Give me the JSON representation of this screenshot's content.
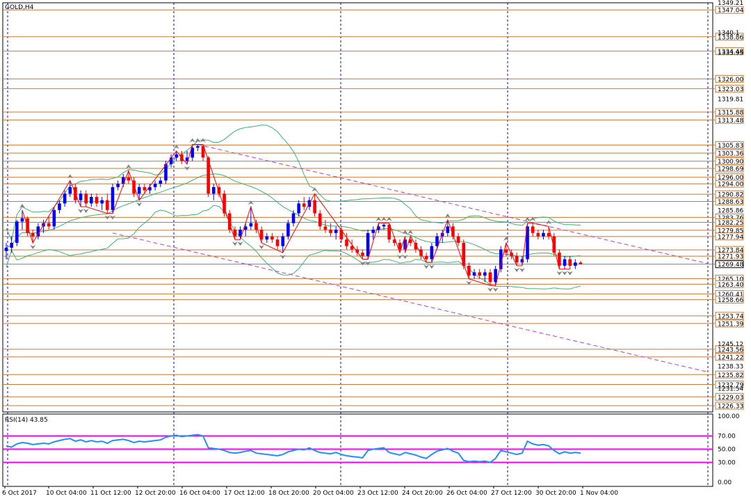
{
  "chart_data": {
    "type": "candlestick",
    "title": "GOLD,H4",
    "main_ylim": [
      1226.33,
      1349.21
    ],
    "price_axis_ticks": [
      "1349.21",
      "1340.1",
      "1333.95",
      "1319.81",
      "1285.86",
      "1245.12",
      "1238.33",
      "1231.54"
    ],
    "current_price": "1269.48",
    "horizontal_levels": [
      "1347.04",
      "1338.86",
      "1334.48",
      "1326.00",
      "1323.03",
      "1315.88",
      "1313.48",
      "1305.83",
      "1303.36",
      "1300.90",
      "1298.69",
      "1296.00",
      "1294.00",
      "1290.82",
      "1288.63",
      "1283.76",
      "1282.25",
      "1279.85",
      "1277.94",
      "1273.84",
      "1271.93",
      "1265.10",
      "1263.40",
      "1260.41",
      "1258.66",
      "1253.74",
      "1251.39",
      "1243.56",
      "1241.22",
      "1235.82",
      "1232.79",
      "1229.03",
      "1226.33"
    ],
    "x_tick_labels": [
      "6 Oct 2017",
      "10 Oct 04:00",
      "11 Oct 12:00",
      "12 Oct 20:00",
      "16 Oct 04:00",
      "17 Oct 12:00",
      "18 Oct 20:00",
      "20 Oct 04:00",
      "23 Oct 12:00",
      "24 Oct 20:00",
      "26 Oct 04:00",
      "27 Oct 12:00",
      "30 Oct 20:00",
      "1 Nov 04:00"
    ],
    "candles": [
      {
        "o": 1273.5,
        "h": 1276,
        "l": 1271,
        "c": 1274.5
      },
      {
        "o": 1274.5,
        "h": 1278,
        "l": 1273,
        "c": 1276
      },
      {
        "o": 1276,
        "h": 1283,
        "l": 1275,
        "c": 1282.5
      },
      {
        "o": 1282.5,
        "h": 1286,
        "l": 1280,
        "c": 1283.5
      },
      {
        "o": 1283.5,
        "h": 1284,
        "l": 1278,
        "c": 1279
      },
      {
        "o": 1279,
        "h": 1280,
        "l": 1276,
        "c": 1278
      },
      {
        "o": 1278,
        "h": 1282,
        "l": 1277,
        "c": 1281
      },
      {
        "o": 1281,
        "h": 1283,
        "l": 1279,
        "c": 1282
      },
      {
        "o": 1282,
        "h": 1284,
        "l": 1280,
        "c": 1281
      },
      {
        "o": 1281,
        "h": 1287,
        "l": 1280,
        "c": 1286
      },
      {
        "o": 1286,
        "h": 1289,
        "l": 1285,
        "c": 1288
      },
      {
        "o": 1288,
        "h": 1292,
        "l": 1287,
        "c": 1291
      },
      {
        "o": 1291,
        "h": 1295,
        "l": 1290,
        "c": 1293
      },
      {
        "o": 1293,
        "h": 1294,
        "l": 1288,
        "c": 1289
      },
      {
        "o": 1289,
        "h": 1292,
        "l": 1287,
        "c": 1291
      },
      {
        "o": 1291,
        "h": 1292,
        "l": 1287,
        "c": 1288
      },
      {
        "o": 1288,
        "h": 1291,
        "l": 1287,
        "c": 1290
      },
      {
        "o": 1290,
        "h": 1291,
        "l": 1287,
        "c": 1288
      },
      {
        "o": 1288,
        "h": 1290,
        "l": 1286,
        "c": 1289
      },
      {
        "o": 1289,
        "h": 1291,
        "l": 1285,
        "c": 1286
      },
      {
        "o": 1286,
        "h": 1294,
        "l": 1285,
        "c": 1293
      },
      {
        "o": 1293,
        "h": 1295,
        "l": 1292,
        "c": 1294
      },
      {
        "o": 1294,
        "h": 1297,
        "l": 1293,
        "c": 1296
      },
      {
        "o": 1296,
        "h": 1298,
        "l": 1294,
        "c": 1295
      },
      {
        "o": 1295,
        "h": 1296,
        "l": 1290,
        "c": 1291
      },
      {
        "o": 1291,
        "h": 1294,
        "l": 1289,
        "c": 1293
      },
      {
        "o": 1293,
        "h": 1294,
        "l": 1291,
        "c": 1292
      },
      {
        "o": 1292,
        "h": 1294,
        "l": 1291,
        "c": 1293
      },
      {
        "o": 1293,
        "h": 1295,
        "l": 1292,
        "c": 1294
      },
      {
        "o": 1294,
        "h": 1296,
        "l": 1293,
        "c": 1295
      },
      {
        "o": 1295,
        "h": 1301,
        "l": 1294,
        "c": 1300
      },
      {
        "o": 1300,
        "h": 1303,
        "l": 1299,
        "c": 1302
      },
      {
        "o": 1302,
        "h": 1304,
        "l": 1301,
        "c": 1303
      },
      {
        "o": 1303,
        "h": 1304,
        "l": 1300,
        "c": 1301
      },
      {
        "o": 1301,
        "h": 1304,
        "l": 1300,
        "c": 1302
      },
      {
        "o": 1302,
        "h": 1306,
        "l": 1301,
        "c": 1305
      },
      {
        "o": 1305,
        "h": 1306,
        "l": 1304,
        "c": 1305.5
      },
      {
        "o": 1305.5,
        "h": 1306,
        "l": 1301,
        "c": 1302
      },
      {
        "o": 1302,
        "h": 1302.5,
        "l": 1290,
        "c": 1291
      },
      {
        "o": 1291,
        "h": 1294,
        "l": 1289,
        "c": 1293
      },
      {
        "o": 1293,
        "h": 1294,
        "l": 1290,
        "c": 1291
      },
      {
        "o": 1291,
        "h": 1292,
        "l": 1284,
        "c": 1285
      },
      {
        "o": 1285,
        "h": 1286,
        "l": 1279,
        "c": 1280
      },
      {
        "o": 1280,
        "h": 1281,
        "l": 1277,
        "c": 1278
      },
      {
        "o": 1278,
        "h": 1281,
        "l": 1277,
        "c": 1280
      },
      {
        "o": 1280,
        "h": 1282,
        "l": 1278,
        "c": 1281
      },
      {
        "o": 1281,
        "h": 1287,
        "l": 1280,
        "c": 1282
      },
      {
        "o": 1282,
        "h": 1283,
        "l": 1279,
        "c": 1280
      },
      {
        "o": 1280,
        "h": 1281,
        "l": 1276,
        "c": 1277
      },
      {
        "o": 1277,
        "h": 1279,
        "l": 1276,
        "c": 1278
      },
      {
        "o": 1278,
        "h": 1279,
        "l": 1276,
        "c": 1277
      },
      {
        "o": 1277,
        "h": 1278,
        "l": 1274,
        "c": 1275
      },
      {
        "o": 1275,
        "h": 1279,
        "l": 1273,
        "c": 1278
      },
      {
        "o": 1278,
        "h": 1283,
        "l": 1277,
        "c": 1282
      },
      {
        "o": 1282,
        "h": 1286,
        "l": 1281,
        "c": 1285
      },
      {
        "o": 1285,
        "h": 1289,
        "l": 1284,
        "c": 1288
      },
      {
        "o": 1288,
        "h": 1290,
        "l": 1286,
        "c": 1287
      },
      {
        "o": 1287,
        "h": 1290,
        "l": 1286,
        "c": 1289
      },
      {
        "o": 1289,
        "h": 1291,
        "l": 1284,
        "c": 1285
      },
      {
        "o": 1285,
        "h": 1286,
        "l": 1280,
        "c": 1281
      },
      {
        "o": 1281,
        "h": 1283,
        "l": 1279,
        "c": 1280
      },
      {
        "o": 1280,
        "h": 1282,
        "l": 1278,
        "c": 1279
      },
      {
        "o": 1279,
        "h": 1281,
        "l": 1277,
        "c": 1280
      },
      {
        "o": 1280,
        "h": 1281,
        "l": 1276,
        "c": 1277
      },
      {
        "o": 1277,
        "h": 1279,
        "l": 1274,
        "c": 1275
      },
      {
        "o": 1275,
        "h": 1277,
        "l": 1273,
        "c": 1274
      },
      {
        "o": 1274,
        "h": 1275,
        "l": 1272,
        "c": 1273
      },
      {
        "o": 1273,
        "h": 1274,
        "l": 1271,
        "c": 1272
      },
      {
        "o": 1272,
        "h": 1280,
        "l": 1271,
        "c": 1279
      },
      {
        "o": 1279,
        "h": 1281,
        "l": 1277,
        "c": 1280
      },
      {
        "o": 1280,
        "h": 1282,
        "l": 1279,
        "c": 1281
      },
      {
        "o": 1281,
        "h": 1282,
        "l": 1280,
        "c": 1281.5
      },
      {
        "o": 1281.5,
        "h": 1282,
        "l": 1276,
        "c": 1277
      },
      {
        "o": 1277,
        "h": 1278,
        "l": 1275,
        "c": 1276
      },
      {
        "o": 1276,
        "h": 1277,
        "l": 1273,
        "c": 1274
      },
      {
        "o": 1274,
        "h": 1278,
        "l": 1273,
        "c": 1277
      },
      {
        "o": 1277,
        "h": 1278,
        "l": 1275,
        "c": 1276
      },
      {
        "o": 1276,
        "h": 1277,
        "l": 1273,
        "c": 1274
      },
      {
        "o": 1274,
        "h": 1275,
        "l": 1271,
        "c": 1272
      },
      {
        "o": 1272,
        "h": 1273,
        "l": 1270,
        "c": 1271
      },
      {
        "o": 1271,
        "h": 1276,
        "l": 1270,
        "c": 1275
      },
      {
        "o": 1275,
        "h": 1279,
        "l": 1274,
        "c": 1278
      },
      {
        "o": 1278,
        "h": 1280,
        "l": 1276,
        "c": 1279
      },
      {
        "o": 1279,
        "h": 1283,
        "l": 1278,
        "c": 1281
      },
      {
        "o": 1281,
        "h": 1282,
        "l": 1277,
        "c": 1278
      },
      {
        "o": 1278,
        "h": 1279,
        "l": 1275,
        "c": 1276
      },
      {
        "o": 1276,
        "h": 1277,
        "l": 1268,
        "c": 1269
      },
      {
        "o": 1269,
        "h": 1270,
        "l": 1265,
        "c": 1266
      },
      {
        "o": 1266,
        "h": 1268,
        "l": 1265,
        "c": 1267
      },
      {
        "o": 1267,
        "h": 1268,
        "l": 1265,
        "c": 1266
      },
      {
        "o": 1266,
        "h": 1268,
        "l": 1264,
        "c": 1267
      },
      {
        "o": 1267,
        "h": 1268,
        "l": 1263,
        "c": 1264
      },
      {
        "o": 1264,
        "h": 1269,
        "l": 1263,
        "c": 1268
      },
      {
        "o": 1268,
        "h": 1275,
        "l": 1267,
        "c": 1274
      },
      {
        "o": 1274,
        "h": 1276,
        "l": 1272,
        "c": 1273
      },
      {
        "o": 1273,
        "h": 1274,
        "l": 1271,
        "c": 1272
      },
      {
        "o": 1272,
        "h": 1273,
        "l": 1269,
        "c": 1270
      },
      {
        "o": 1270,
        "h": 1272,
        "l": 1269,
        "c": 1271
      },
      {
        "o": 1271,
        "h": 1282,
        "l": 1270,
        "c": 1281
      },
      {
        "o": 1281,
        "h": 1282,
        "l": 1278,
        "c": 1279
      },
      {
        "o": 1279,
        "h": 1280,
        "l": 1277,
        "c": 1278
      },
      {
        "o": 1278,
        "h": 1280,
        "l": 1277,
        "c": 1279
      },
      {
        "o": 1279,
        "h": 1281,
        "l": 1277,
        "c": 1278
      },
      {
        "o": 1278,
        "h": 1279,
        "l": 1272,
        "c": 1273
      },
      {
        "o": 1273,
        "h": 1274,
        "l": 1268,
        "c": 1269
      },
      {
        "o": 1269,
        "h": 1272,
        "l": 1268,
        "c": 1271
      },
      {
        "o": 1271,
        "h": 1272,
        "l": 1268,
        "c": 1269
      },
      {
        "o": 1269,
        "h": 1271,
        "l": 1268,
        "c": 1270
      },
      {
        "o": 1270,
        "h": 1270.5,
        "l": 1269.5,
        "c": 1269.48
      }
    ],
    "rsi": {
      "label": "RSI(14) 43.85",
      "ylim": [
        0,
        100
      ],
      "ticks": [
        "100.00",
        "70.00",
        "50.00",
        "30.00",
        "0.00"
      ],
      "levels": [
        70,
        50,
        30
      ],
      "values": [
        55,
        53,
        58,
        60,
        59,
        57,
        58,
        59,
        58,
        61,
        63,
        65,
        66,
        62,
        64,
        61,
        63,
        61,
        62,
        59,
        63,
        64,
        65,
        63,
        60,
        62,
        61,
        62,
        63,
        64,
        68,
        70,
        71,
        69,
        70,
        71,
        72,
        70,
        52,
        51,
        50,
        48,
        45,
        44,
        45,
        47,
        48,
        44,
        43,
        42,
        41,
        40,
        42,
        46,
        48,
        50,
        49,
        52,
        48,
        45,
        44,
        43,
        45,
        42,
        40,
        39,
        38,
        37,
        48,
        50,
        51,
        52,
        45,
        43,
        41,
        45,
        43,
        41,
        38,
        36,
        42,
        47,
        49,
        51,
        47,
        44,
        33,
        31,
        32,
        31,
        32,
        30,
        36,
        48,
        46,
        44,
        42,
        44,
        62,
        58,
        56,
        57,
        55,
        48,
        43,
        46,
        44,
        45,
        44
      ]
    },
    "colors": {
      "bull": "#0000ff",
      "bear": "#ff0000",
      "levels": "#c87832",
      "rsi_line": "#1e90ff",
      "rsi_levels": "#ff00ff",
      "bands": "#3cb371",
      "channel": "#b040d0",
      "zigzag": "#ff0000",
      "fractals": "#808080"
    }
  }
}
